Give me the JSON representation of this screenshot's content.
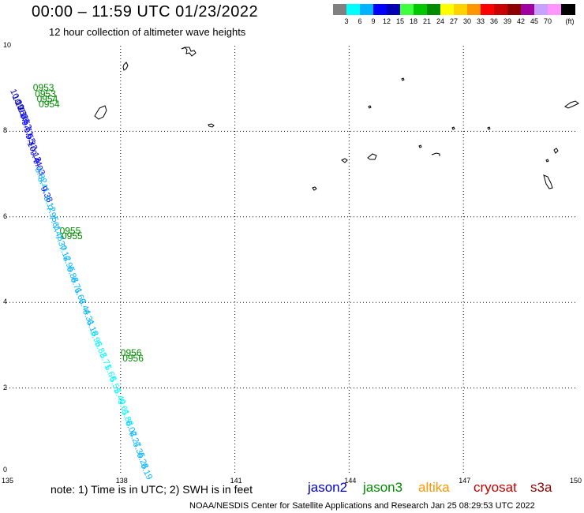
{
  "header": {
    "title": "00:00 – 11:59 UTC 01/23/2022",
    "subtitle": "12 hour collection of altimeter wave heights"
  },
  "legend": {
    "unit": "(ft)",
    "bins": [
      {
        "color": "#808080",
        "label": ""
      },
      {
        "color": "#00ffff",
        "label": "3"
      },
      {
        "color": "#00b4ff",
        "label": "6"
      },
      {
        "color": "#0000ff",
        "label": "9"
      },
      {
        "color": "#0000b4",
        "label": "12"
      },
      {
        "color": "#40ff40",
        "label": "15"
      },
      {
        "color": "#00c800",
        "label": "18"
      },
      {
        "color": "#008c00",
        "label": "21"
      },
      {
        "color": "#ffff00",
        "label": "24"
      },
      {
        "color": "#ffd200",
        "label": "27"
      },
      {
        "color": "#ff9600",
        "label": "30"
      },
      {
        "color": "#ff0000",
        "label": "33"
      },
      {
        "color": "#c80000",
        "label": "36"
      },
      {
        "color": "#8c0000",
        "label": "39"
      },
      {
        "color": "#a000a0",
        "label": "42"
      },
      {
        "color": "#c8a0ff",
        "label": "45"
      },
      {
        "color": "#ff96ff",
        "label": "70"
      },
      {
        "color": "#000000",
        "label": ""
      }
    ]
  },
  "axes": {
    "lon_labels": [
      "135",
      "138",
      "141",
      "144",
      "147",
      "150"
    ],
    "lat_labels": [
      "0",
      "2",
      "4",
      "6",
      "8",
      "10"
    ],
    "lon_range": [
      135,
      150
    ],
    "lat_range": [
      0,
      10
    ]
  },
  "track": {
    "time_labels": [
      {
        "text": "0953",
        "lon": 135.7,
        "lat": 8.95
      },
      {
        "text": "0953",
        "lon": 135.75,
        "lat": 8.8
      },
      {
        "text": "0954",
        "lon": 135.8,
        "lat": 8.68
      },
      {
        "text": "0954",
        "lon": 135.85,
        "lat": 8.56
      },
      {
        "text": "0955",
        "lon": 136.4,
        "lat": 5.6
      },
      {
        "text": "0955",
        "lon": 136.45,
        "lat": 5.48
      },
      {
        "text": "0956",
        "lon": 138.0,
        "lat": 2.75
      },
      {
        "text": "0956",
        "lon": 138.05,
        "lat": 2.62
      }
    ],
    "swh_labels": [
      {
        "text": "10.09",
        "lon": 135.1,
        "lat": 8.95,
        "color": "#0000b4"
      },
      {
        "text": "10.25",
        "lon": 135.15,
        "lat": 8.82,
        "color": "#0000b4"
      },
      {
        "text": "10.11",
        "lon": 135.22,
        "lat": 8.68,
        "color": "#0000b4"
      },
      {
        "text": "9.86",
        "lon": 135.3,
        "lat": 8.52,
        "color": "#0000ff"
      },
      {
        "text": "9.52",
        "lon": 135.35,
        "lat": 8.38,
        "color": "#0000ff"
      },
      {
        "text": "9.71",
        "lon": 135.4,
        "lat": 8.22,
        "color": "#0000ff"
      },
      {
        "text": "9.55",
        "lon": 135.45,
        "lat": 8.05,
        "color": "#0000ff"
      },
      {
        "text": "9.32",
        "lon": 135.5,
        "lat": 7.9,
        "color": "#0000ff"
      },
      {
        "text": "10.13",
        "lon": 135.55,
        "lat": 7.72,
        "color": "#0000b4"
      },
      {
        "text": "9.44",
        "lon": 135.62,
        "lat": 7.52,
        "color": "#0000ff"
      },
      {
        "text": "9.03",
        "lon": 135.7,
        "lat": 7.32,
        "color": "#0000ff"
      },
      {
        "text": "8.82",
        "lon": 135.75,
        "lat": 7.12,
        "color": "#00b4ff"
      },
      {
        "text": "8.41",
        "lon": 135.82,
        "lat": 6.9,
        "color": "#00b4ff"
      },
      {
        "text": "9.38",
        "lon": 135.9,
        "lat": 6.68,
        "color": "#0000ff"
      },
      {
        "text": "8.12",
        "lon": 135.98,
        "lat": 6.45,
        "color": "#00b4ff"
      },
      {
        "text": "7.95",
        "lon": 136.05,
        "lat": 6.22,
        "color": "#00b4ff"
      },
      {
        "text": "7.61",
        "lon": 136.12,
        "lat": 6.0,
        "color": "#00b4ff"
      },
      {
        "text": "7.48",
        "lon": 136.2,
        "lat": 5.78,
        "color": "#00b4ff"
      },
      {
        "text": "7.30",
        "lon": 136.28,
        "lat": 5.55,
        "color": "#00b4ff"
      },
      {
        "text": "7.12",
        "lon": 136.38,
        "lat": 5.3,
        "color": "#00b4ff"
      },
      {
        "text": "6.95",
        "lon": 136.48,
        "lat": 5.05,
        "color": "#00b4ff"
      },
      {
        "text": "6.88",
        "lon": 136.58,
        "lat": 4.8,
        "color": "#00b4ff"
      },
      {
        "text": "6.71",
        "lon": 136.68,
        "lat": 4.55,
        "color": "#00b4ff"
      },
      {
        "text": "6.62",
        "lon": 136.78,
        "lat": 4.3,
        "color": "#00b4ff"
      },
      {
        "text": "6.44",
        "lon": 136.9,
        "lat": 4.05,
        "color": "#00b4ff"
      },
      {
        "text": "6.31",
        "lon": 137.0,
        "lat": 3.8,
        "color": "#00b4ff"
      },
      {
        "text": "6.18",
        "lon": 137.1,
        "lat": 3.55,
        "color": "#00b4ff"
      },
      {
        "text": "5.96",
        "lon": 137.2,
        "lat": 3.3,
        "color": "#00ffff"
      },
      {
        "text": "5.82",
        "lon": 137.32,
        "lat": 3.05,
        "color": "#00ffff"
      },
      {
        "text": "5.71",
        "lon": 137.45,
        "lat": 2.78,
        "color": "#00ffff"
      },
      {
        "text": "5.66",
        "lon": 137.58,
        "lat": 2.5,
        "color": "#00ffff"
      },
      {
        "text": "5.52",
        "lon": 137.7,
        "lat": 2.22,
        "color": "#00ffff"
      },
      {
        "text": "5.40",
        "lon": 137.82,
        "lat": 1.95,
        "color": "#00ffff"
      },
      {
        "text": "5.61",
        "lon": 137.92,
        "lat": 1.7,
        "color": "#00ffff"
      },
      {
        "text": "5.88",
        "lon": 138.02,
        "lat": 1.45,
        "color": "#00ffff"
      },
      {
        "text": "6.02",
        "lon": 138.12,
        "lat": 1.2,
        "color": "#00b4ff"
      },
      {
        "text": "6.27",
        "lon": 138.22,
        "lat": 0.95,
        "color": "#00b4ff"
      },
      {
        "text": "6.35",
        "lon": 138.32,
        "lat": 0.7,
        "color": "#00b4ff"
      },
      {
        "text": "6.28",
        "lon": 138.42,
        "lat": 0.45,
        "color": "#00b4ff"
      },
      {
        "text": "6.19",
        "lon": 138.52,
        "lat": 0.2,
        "color": "#00b4ff"
      }
    ]
  },
  "footer": {
    "note": "note:  1) Time is in UTC;  2) SWH is in feet",
    "satellites": [
      {
        "name": "jason2",
        "color": "#0000c8"
      },
      {
        "name": "jason3",
        "color": "#008c00"
      },
      {
        "name": "altika",
        "color": "#ff9600"
      },
      {
        "name": "cryosat",
        "color": "#c80000"
      },
      {
        "name": "s3a",
        "color": "#8c0000"
      }
    ],
    "credit": "NOAA/NESDIS Center for Satellite Applications and Research    Jan 25 08:29:53 UTC 2022"
  }
}
